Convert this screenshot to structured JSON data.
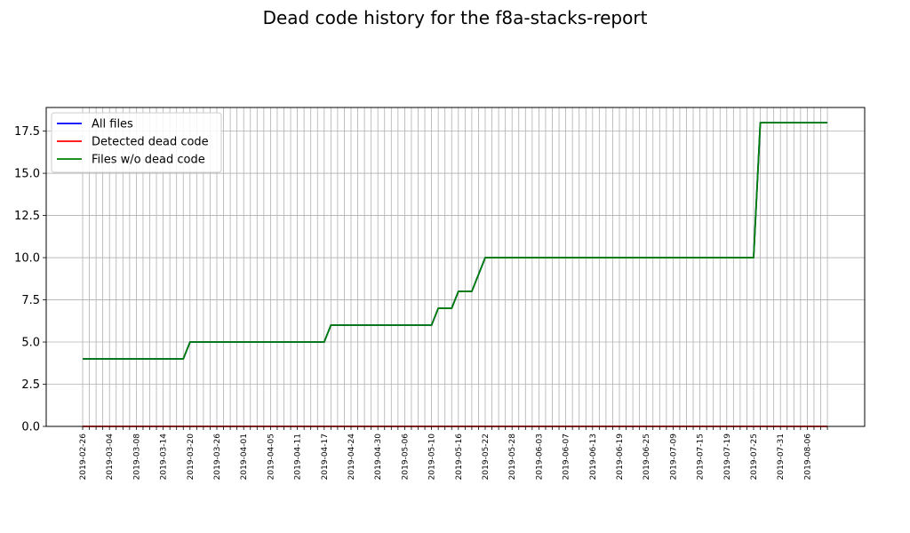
{
  "chart_data": {
    "type": "line",
    "title": "Dead code history for the f8a-stacks-report",
    "xlabel": "",
    "ylabel": "",
    "ylim": [
      0,
      18.9
    ],
    "yticks": [
      "0.0",
      "2.5",
      "5.0",
      "7.5",
      "10.0",
      "12.5",
      "15.0",
      "17.5"
    ],
    "ytick_values": [
      0,
      2.5,
      5,
      7.5,
      10,
      12.5,
      15,
      17.5
    ],
    "xtick_labels": [
      "2019-02-26",
      "2019-03-04",
      "2019-03-08",
      "2019-03-14",
      "2019-03-20",
      "2019-03-26",
      "2019-04-01",
      "2019-04-05",
      "2019-04-11",
      "2019-04-17",
      "2019-04-24",
      "2019-04-30",
      "2019-05-06",
      "2019-05-10",
      "2019-05-16",
      "2019-05-22",
      "2019-05-28",
      "2019-06-03",
      "2019-06-07",
      "2019-06-13",
      "2019-06-19",
      "2019-06-25",
      "2019-07-09",
      "2019-07-15",
      "2019-07-19",
      "2019-07-25",
      "2019-07-31",
      "2019-08-06"
    ],
    "grid": true,
    "legend_position": "top-left",
    "point_count": 112,
    "series": [
      {
        "name": "All files",
        "color": "#0000ff",
        "segments": [
          [
            0,
            4
          ],
          [
            15,
            4
          ],
          [
            16,
            5
          ],
          [
            36,
            5
          ],
          [
            37,
            6
          ],
          [
            52,
            6
          ],
          [
            53,
            7
          ],
          [
            55,
            7
          ],
          [
            56,
            8
          ],
          [
            58,
            8
          ],
          [
            60,
            10
          ],
          [
            100,
            10
          ],
          [
            101,
            18
          ],
          [
            111,
            18
          ]
        ]
      },
      {
        "name": "Detected dead code",
        "color": "#ff0000",
        "segments": [
          [
            0,
            0
          ],
          [
            111,
            0
          ]
        ]
      },
      {
        "name": "Files w/o dead code",
        "color": "#008000",
        "segments": [
          [
            0,
            4
          ],
          [
            15,
            4
          ],
          [
            16,
            5
          ],
          [
            36,
            5
          ],
          [
            37,
            6
          ],
          [
            52,
            6
          ],
          [
            53,
            7
          ],
          [
            55,
            7
          ],
          [
            56,
            8
          ],
          [
            58,
            8
          ],
          [
            60,
            10
          ],
          [
            100,
            10
          ],
          [
            101,
            18
          ],
          [
            111,
            18
          ]
        ]
      }
    ]
  }
}
